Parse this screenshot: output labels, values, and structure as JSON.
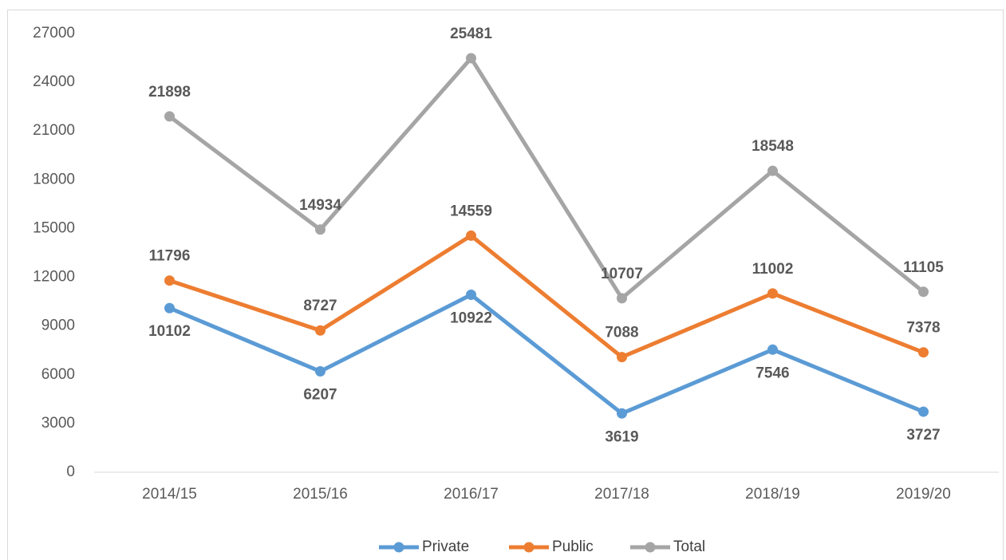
{
  "chart_data": {
    "type": "line",
    "categories": [
      "2014/15",
      "2015/16",
      "2016/17",
      "2017/18",
      "2018/19",
      "2019/20"
    ],
    "series": [
      {
        "name": "Private",
        "color": "#5b9bd5",
        "values": [
          10102,
          6207,
          10922,
          3619,
          7546,
          3727
        ]
      },
      {
        "name": "Public",
        "color": "#ed7d31",
        "values": [
          11796,
          8727,
          14559,
          7088,
          11002,
          7378
        ]
      },
      {
        "name": "Total",
        "color": "#a5a5a5",
        "values": [
          21898,
          14934,
          25481,
          10707,
          18548,
          11105
        ]
      }
    ],
    "ylim": [
      0,
      27000
    ],
    "yticks": [
      0,
      3000,
      6000,
      9000,
      12000,
      15000,
      18000,
      21000,
      24000,
      27000
    ],
    "grid": false,
    "legend": "bottom"
  }
}
